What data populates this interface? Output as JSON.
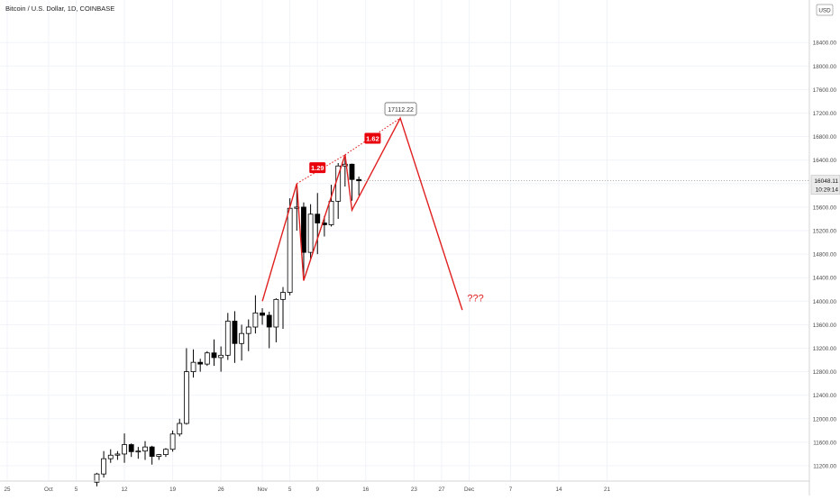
{
  "header": {
    "title": "Bitcoin / U.S. Dollar, 1D, COINBASE"
  },
  "price_axis": {
    "currency": "USD"
  },
  "colors": {
    "candle_up": "#ffffff",
    "candle_down": "#000000",
    "candle_border": "#000000",
    "pattern": "#e02020",
    "badge": "#e8000b",
    "grid": "#f0f3f8",
    "axis_text": "#4a4a4a"
  },
  "chart_data": {
    "type": "candlestick",
    "title": "Bitcoin / U.S. Dollar, 1D, COINBASE",
    "y_unit": "USD",
    "ylim": [
      11000,
      18700
    ],
    "y_ticks": [
      11200,
      11600,
      12000,
      12400,
      12800,
      13200,
      13600,
      14000,
      14400,
      14800,
      15200,
      15600,
      16000,
      16400,
      16800,
      17200,
      17600,
      18000,
      18400
    ],
    "x_ticks": [
      {
        "label": "25",
        "date": "2020-09-25"
      },
      {
        "label": "Oct",
        "date": "2020-10-01"
      },
      {
        "label": "5",
        "date": "2020-10-05"
      },
      {
        "label": "12",
        "date": "2020-10-12"
      },
      {
        "label": "19",
        "date": "2020-10-19"
      },
      {
        "label": "26",
        "date": "2020-10-26"
      },
      {
        "label": "Nov",
        "date": "2020-11-01"
      },
      {
        "label": "5",
        "date": "2020-11-05"
      },
      {
        "label": "9",
        "date": "2020-11-09"
      },
      {
        "label": "16",
        "date": "2020-11-16"
      },
      {
        "label": "23",
        "date": "2020-11-23"
      },
      {
        "label": "27",
        "date": "2020-11-27"
      },
      {
        "label": "Dec",
        "date": "2020-12-01"
      },
      {
        "label": "7",
        "date": "2020-12-07"
      },
      {
        "label": "14",
        "date": "2020-12-14"
      },
      {
        "label": "21",
        "date": "2020-12-21"
      }
    ],
    "grid": true,
    "candles": [
      {
        "date": "2020-10-08",
        "open": 10920,
        "high": 11080,
        "low": 10850,
        "close": 11060
      },
      {
        "date": "2020-10-09",
        "open": 11060,
        "high": 11450,
        "low": 11000,
        "close": 11320
      },
      {
        "date": "2020-10-10",
        "open": 11320,
        "high": 11480,
        "low": 11250,
        "close": 11380
      },
      {
        "date": "2020-10-11",
        "open": 11380,
        "high": 11450,
        "low": 11300,
        "close": 11400
      },
      {
        "date": "2020-10-12",
        "open": 11400,
        "high": 11750,
        "low": 11250,
        "close": 11560
      },
      {
        "date": "2020-10-13",
        "open": 11560,
        "high": 11580,
        "low": 11350,
        "close": 11440
      },
      {
        "date": "2020-10-14",
        "open": 11440,
        "high": 11520,
        "low": 11320,
        "close": 11450
      },
      {
        "date": "2020-10-15",
        "open": 11450,
        "high": 11620,
        "low": 11300,
        "close": 11520
      },
      {
        "date": "2020-10-16",
        "open": 11520,
        "high": 11540,
        "low": 11220,
        "close": 11360
      },
      {
        "date": "2020-10-17",
        "open": 11360,
        "high": 11400,
        "low": 11300,
        "close": 11390
      },
      {
        "date": "2020-10-18",
        "open": 11390,
        "high": 11500,
        "low": 11350,
        "close": 11480
      },
      {
        "date": "2020-10-19",
        "open": 11480,
        "high": 11800,
        "low": 11440,
        "close": 11740
      },
      {
        "date": "2020-10-20",
        "open": 11740,
        "high": 12000,
        "low": 11700,
        "close": 11920
      },
      {
        "date": "2020-10-21",
        "open": 11920,
        "high": 13200,
        "low": 11900,
        "close": 12800
      },
      {
        "date": "2020-10-22",
        "open": 12800,
        "high": 13180,
        "low": 12700,
        "close": 12960
      },
      {
        "date": "2020-10-23",
        "open": 12960,
        "high": 13020,
        "low": 12800,
        "close": 12930
      },
      {
        "date": "2020-10-24",
        "open": 12930,
        "high": 13150,
        "low": 12900,
        "close": 13120
      },
      {
        "date": "2020-10-25",
        "open": 13120,
        "high": 13350,
        "low": 12900,
        "close": 13040
      },
      {
        "date": "2020-10-26",
        "open": 13040,
        "high": 13230,
        "low": 12800,
        "close": 13080
      },
      {
        "date": "2020-10-27",
        "open": 13080,
        "high": 13800,
        "low": 13000,
        "close": 13660
      },
      {
        "date": "2020-10-28",
        "open": 13660,
        "high": 13830,
        "low": 12950,
        "close": 13280
      },
      {
        "date": "2020-10-29",
        "open": 13280,
        "high": 13600,
        "low": 12990,
        "close": 13450
      },
      {
        "date": "2020-10-30",
        "open": 13450,
        "high": 13690,
        "low": 13150,
        "close": 13560
      },
      {
        "date": "2020-10-31",
        "open": 13560,
        "high": 14100,
        "low": 13450,
        "close": 13800
      },
      {
        "date": "2020-11-01",
        "open": 13800,
        "high": 13880,
        "low": 13600,
        "close": 13760
      },
      {
        "date": "2020-11-02",
        "open": 13760,
        "high": 13820,
        "low": 13200,
        "close": 13560
      },
      {
        "date": "2020-11-03",
        "open": 13560,
        "high": 14050,
        "low": 13300,
        "close": 14030
      },
      {
        "date": "2020-11-04",
        "open": 14030,
        "high": 14240,
        "low": 13530,
        "close": 14150
      },
      {
        "date": "2020-11-05",
        "open": 14150,
        "high": 15750,
        "low": 14100,
        "close": 15580
      },
      {
        "date": "2020-11-06",
        "open": 15580,
        "high": 15970,
        "low": 15200,
        "close": 15600
      },
      {
        "date": "2020-11-07",
        "open": 15600,
        "high": 15680,
        "low": 14350,
        "close": 14830
      },
      {
        "date": "2020-11-08",
        "open": 14830,
        "high": 15650,
        "low": 14720,
        "close": 15480
      },
      {
        "date": "2020-11-09",
        "open": 15480,
        "high": 15840,
        "low": 14800,
        "close": 15330
      },
      {
        "date": "2020-11-10",
        "open": 15330,
        "high": 15450,
        "low": 15100,
        "close": 15300
      },
      {
        "date": "2020-11-11",
        "open": 15300,
        "high": 15980,
        "low": 15270,
        "close": 15700
      },
      {
        "date": "2020-11-12",
        "open": 15700,
        "high": 16350,
        "low": 15400,
        "close": 16300
      },
      {
        "date": "2020-11-13",
        "open": 16300,
        "high": 16490,
        "low": 15950,
        "close": 16330
      },
      {
        "date": "2020-11-14",
        "open": 16330,
        "high": 16340,
        "low": 15710,
        "close": 16070
      },
      {
        "date": "2020-11-15",
        "open": 16070,
        "high": 16120,
        "low": 15800,
        "close": 16048.11
      }
    ],
    "pattern": [
      {
        "date": "2020-11-01",
        "price": 14000
      },
      {
        "date": "2020-11-06",
        "price": 16000
      },
      {
        "date": "2020-11-07",
        "price": 14350
      },
      {
        "date": "2020-11-13",
        "price": 16490
      },
      {
        "date": "2020-11-14",
        "price": 15550
      },
      {
        "date": "2020-11-21",
        "price": 17112.22
      },
      {
        "date": "2020-11-30",
        "price": 13850
      }
    ],
    "ratio_lines": [
      {
        "from": {
          "date": "2020-11-06",
          "price": 16000
        },
        "to": {
          "date": "2020-11-13",
          "price": 16490
        }
      },
      {
        "from": {
          "date": "2020-11-13",
          "price": 16490
        },
        "to": {
          "date": "2020-11-21",
          "price": 17112.22
        }
      }
    ],
    "ratio_labels": [
      {
        "text": "1.29",
        "date": "2020-11-09",
        "price": 16270
      },
      {
        "text": "1.62",
        "date": "2020-11-17",
        "price": 16770
      }
    ],
    "target": {
      "text": "17112.22",
      "date": "2020-11-21",
      "price": 17270
    },
    "annotation": {
      "text": "???",
      "date": "2020-12-01",
      "price": 14060
    },
    "last_price": {
      "value": "16048.11",
      "countdown": "10:29:14",
      "price": 16048.11
    }
  }
}
